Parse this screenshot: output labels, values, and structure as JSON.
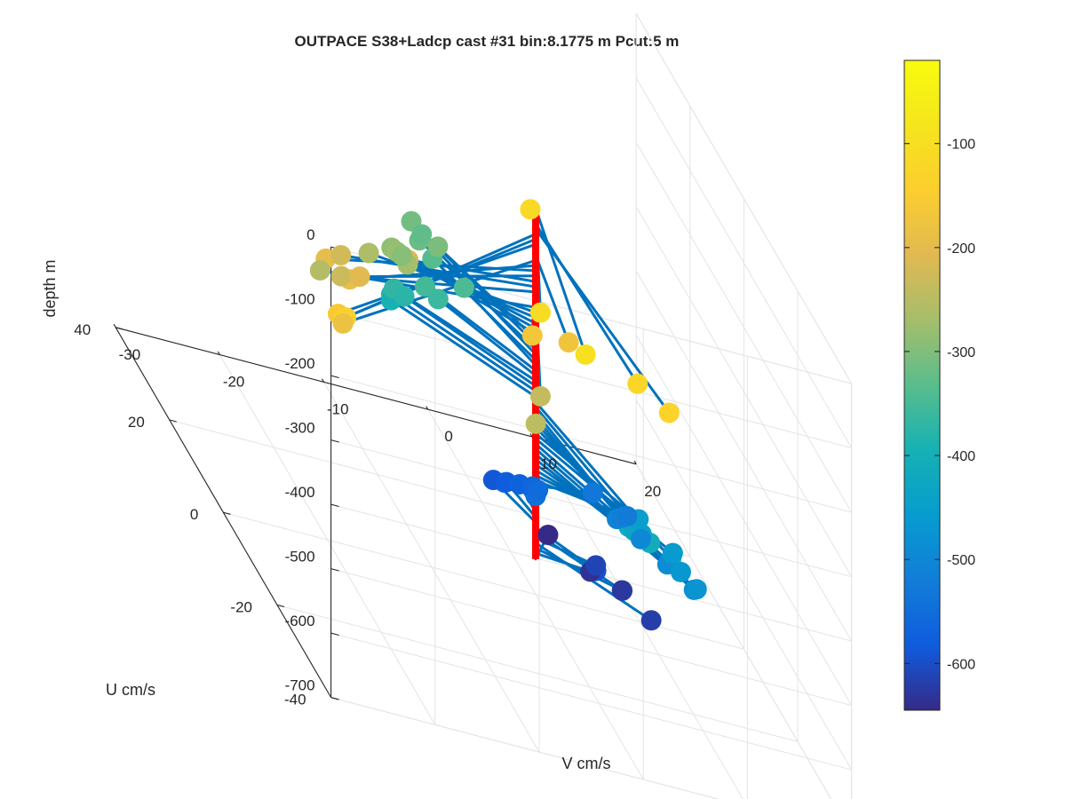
{
  "chart_data": {
    "type": "scatter",
    "subtype": "3d-stick-plot",
    "title": "OUTPACE S38+Ladcp cast #31 bin:8.1775 m  Pcut:5 m",
    "xlabel": "V cm/s",
    "ylabel": "U cm/s",
    "zlabel": "depth m",
    "x_ticks": [
      "-30",
      "-20",
      "-10",
      "0",
      "10",
      "20"
    ],
    "y_ticks": [
      "-40",
      "-20",
      "0",
      "20",
      "40"
    ],
    "z_ticks": [
      "0",
      "-100",
      "-200",
      "-300",
      "-400",
      "-500",
      "-600",
      "-700"
    ],
    "xlim": [
      -30,
      20
    ],
    "ylim": [
      -40,
      40
    ],
    "zlim": [
      -700,
      0
    ],
    "grid": true,
    "colorbar": {
      "ticks": [
        "-100",
        "-200",
        "-300",
        "-400",
        "-500",
        "-600"
      ],
      "range": [
        -645,
        -20
      ],
      "colormap": "parula"
    },
    "colors": {
      "stick": "#0072BD",
      "axis_line": "#ff0000",
      "axes": "#262626",
      "grid": "#e6e6e6"
    },
    "points": [
      {
        "v": -4,
        "u": -34,
        "depth": -100
      },
      {
        "v": -6,
        "u": -25,
        "depth": -108
      },
      {
        "v": 0,
        "u": 2,
        "depth": -116
      },
      {
        "v": 1,
        "u": -34,
        "depth": -124
      },
      {
        "v": 3,
        "u": -38,
        "depth": -132
      },
      {
        "v": -27,
        "u": -34,
        "depth": -140
      },
      {
        "v": -27,
        "u": -33,
        "depth": -148
      },
      {
        "v": -27,
        "u": -31,
        "depth": -156
      },
      {
        "v": -6,
        "u": -22,
        "depth": -165
      },
      {
        "v": -2,
        "u": -20,
        "depth": -173
      },
      {
        "v": -26,
        "u": -29,
        "depth": -181
      },
      {
        "v": -22,
        "u": -16,
        "depth": -189
      },
      {
        "v": -23,
        "u": -11,
        "depth": -197
      },
      {
        "v": -20,
        "u": -12,
        "depth": -205
      },
      {
        "v": -13,
        "u": -3,
        "depth": -214
      },
      {
        "v": -20,
        "u": -5,
        "depth": -222
      },
      {
        "v": -21,
        "u": -9,
        "depth": -230
      },
      {
        "v": -6,
        "u": -25,
        "depth": -238
      },
      {
        "v": -8,
        "u": -31,
        "depth": -246
      },
      {
        "v": -22,
        "u": -5,
        "depth": -254
      },
      {
        "v": -15,
        "u": 4,
        "depth": -262
      },
      {
        "v": -11,
        "u": 5,
        "depth": -270
      },
      {
        "v": -11,
        "u": 9,
        "depth": -279
      },
      {
        "v": -11,
        "u": 11,
        "depth": -287
      },
      {
        "v": -10,
        "u": 11,
        "depth": -295
      },
      {
        "v": -5,
        "u": 17,
        "depth": -303
      },
      {
        "v": -6,
        "u": 23,
        "depth": -311
      },
      {
        "v": -6,
        "u": 20,
        "depth": -319
      },
      {
        "v": -5,
        "u": 23,
        "depth": -327
      },
      {
        "v": -5,
        "u": 19,
        "depth": -336
      },
      {
        "v": -3,
        "u": 15,
        "depth": -344
      },
      {
        "v": -7,
        "u": 14,
        "depth": -352
      },
      {
        "v": -6,
        "u": 13,
        "depth": -360
      },
      {
        "v": -10,
        "u": 14,
        "depth": -368
      },
      {
        "v": -9,
        "u": 14,
        "depth": -376
      },
      {
        "v": -10,
        "u": 15,
        "depth": -384
      },
      {
        "v": -10,
        "u": 15,
        "depth": -393
      },
      {
        "v": 5,
        "u": -31,
        "depth": -401
      },
      {
        "v": 4,
        "u": -27,
        "depth": -409
      },
      {
        "v": 3,
        "u": -23,
        "depth": -417
      },
      {
        "v": 3,
        "u": -20,
        "depth": -425
      },
      {
        "v": 4,
        "u": -21,
        "depth": -433
      },
      {
        "v": 5,
        "u": -20,
        "depth": -441
      },
      {
        "v": 6,
        "u": -15,
        "depth": -450
      },
      {
        "v": 8,
        "u": -20,
        "depth": -458
      },
      {
        "v": 8,
        "u": -23,
        "depth": -466
      },
      {
        "v": 9,
        "u": -25,
        "depth": -474
      },
      {
        "v": 9,
        "u": -24,
        "depth": -482
      },
      {
        "v": 8,
        "u": -18,
        "depth": -490
      },
      {
        "v": 7,
        "u": -12,
        "depth": -498
      },
      {
        "v": 6,
        "u": -7,
        "depth": -507
      },
      {
        "v": 7,
        "u": -5,
        "depth": -515
      },
      {
        "v": 8,
        "u": -3,
        "depth": -523
      },
      {
        "v": 6,
        "u": 2,
        "depth": -531
      },
      {
        "v": -3,
        "u": 0,
        "depth": -539
      },
      {
        "v": 0,
        "u": 0,
        "depth": -547
      },
      {
        "v": 1,
        "u": 3,
        "depth": -555
      },
      {
        "v": 1,
        "u": 5,
        "depth": -564
      },
      {
        "v": 0,
        "u": 6,
        "depth": -572
      },
      {
        "v": -1,
        "u": 7,
        "depth": -580
      },
      {
        "v": -2,
        "u": 8,
        "depth": -588
      },
      {
        "v": 4,
        "u": -7,
        "depth": -596
      },
      {
        "v": 6,
        "u": -9,
        "depth": -604
      },
      {
        "v": 5,
        "u": -3,
        "depth": -612
      },
      {
        "v": 8,
        "u": -12,
        "depth": -620
      },
      {
        "v": 7,
        "u": -5,
        "depth": -628
      },
      {
        "v": 5,
        "u": -1,
        "depth": -636
      },
      {
        "v": 3,
        "u": 7,
        "depth": -645
      }
    ]
  }
}
